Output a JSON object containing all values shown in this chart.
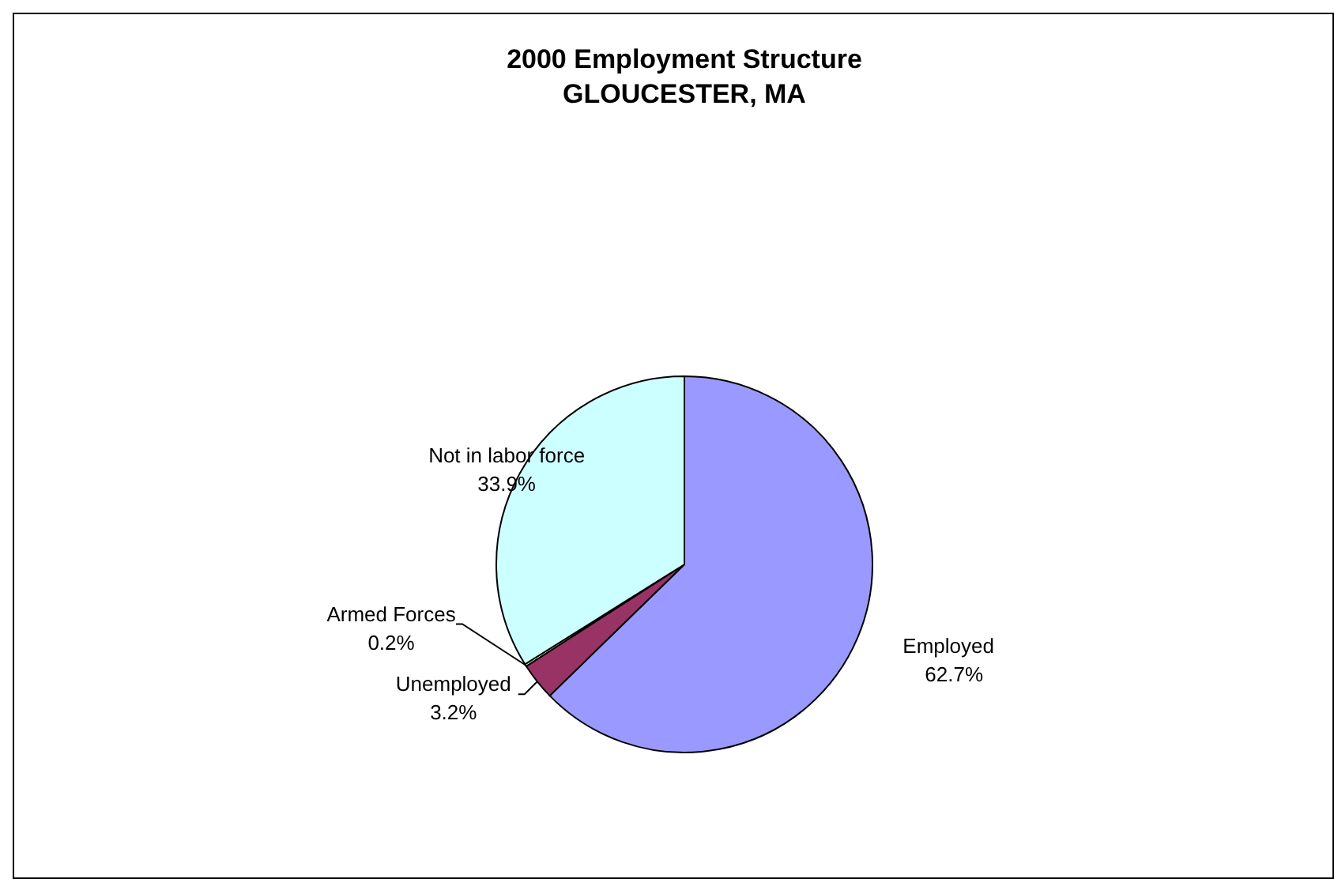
{
  "chart_data": {
    "type": "pie",
    "title": "2000 Employment Structure",
    "subtitle": "GLOUCESTER, MA",
    "categories": [
      "Employed",
      "Unemployed",
      "Armed Forces",
      "Not in labor force"
    ],
    "values": [
      62.7,
      3.2,
      0.2,
      33.9
    ],
    "colors": [
      "#9999ff",
      "#993366",
      "#ffffcc",
      "#ccffff"
    ],
    "value_labels": [
      "62.7%",
      "3.2%",
      "0.2%",
      "33.9%"
    ]
  }
}
